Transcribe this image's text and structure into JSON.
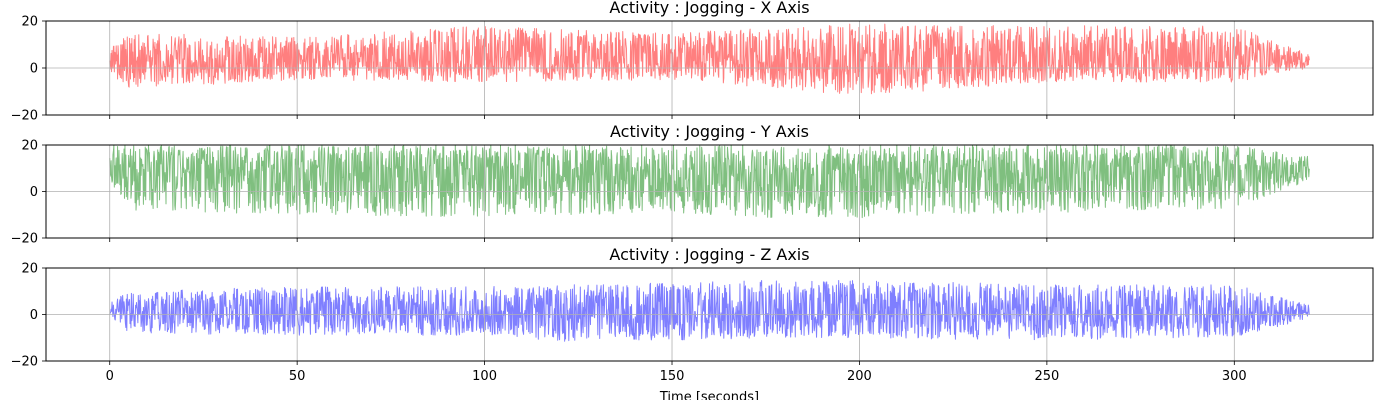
{
  "chart_data": [
    {
      "type": "line",
      "title": "Activity : Jogging - X Axis",
      "color": "#ff0000",
      "alpha": 0.5,
      "xlim": [
        -17,
        337
      ],
      "ylim": [
        -20,
        20
      ],
      "yticks": [
        -20,
        0,
        20
      ],
      "xticks": [
        0,
        50,
        100,
        150,
        200,
        250,
        300
      ],
      "grid": true,
      "show_xticklabels": false,
      "xlabel": "",
      "series": [
        {
          "x_range": [
            0,
            320
          ],
          "baseline": 3,
          "typical_range": [
            -5,
            13
          ],
          "overall_range": [
            -12,
            19
          ],
          "envelope": [
            {
              "x": 0,
              "min": -2,
              "max": 8
            },
            {
              "x": 5,
              "min": -9,
              "max": 15
            },
            {
              "x": 50,
              "min": -5,
              "max": 13
            },
            {
              "x": 100,
              "min": -6,
              "max": 18
            },
            {
              "x": 150,
              "min": -5,
              "max": 15
            },
            {
              "x": 200,
              "min": -12,
              "max": 19
            },
            {
              "x": 250,
              "min": -6,
              "max": 18
            },
            {
              "x": 300,
              "min": -6,
              "max": 18
            },
            {
              "x": 320,
              "min": 0,
              "max": 6
            }
          ]
        }
      ]
    },
    {
      "type": "line",
      "title": "Activity : Jogging - Y Axis",
      "color": "#008000",
      "alpha": 0.5,
      "xlim": [
        -17,
        337
      ],
      "ylim": [
        -20,
        20
      ],
      "yticks": [
        -20,
        0,
        20
      ],
      "xticks": [
        0,
        50,
        100,
        150,
        200,
        250,
        300
      ],
      "grid": true,
      "show_xticklabels": false,
      "xlabel": "",
      "series": [
        {
          "x_range": [
            0,
            320
          ],
          "baseline": 8,
          "typical_range": [
            -6,
            20
          ],
          "overall_range": [
            -12,
            20
          ],
          "envelope": [
            {
              "x": 0,
              "min": 5,
              "max": 20
            },
            {
              "x": 5,
              "min": -8,
              "max": 20
            },
            {
              "x": 50,
              "min": -10,
              "max": 20
            },
            {
              "x": 100,
              "min": -11,
              "max": 20
            },
            {
              "x": 150,
              "min": -9,
              "max": 20
            },
            {
              "x": 185,
              "min": -12,
              "max": 20
            },
            {
              "x": 250,
              "min": -9,
              "max": 20
            },
            {
              "x": 300,
              "min": -8,
              "max": 20
            },
            {
              "x": 320,
              "min": 5,
              "max": 15
            }
          ]
        }
      ]
    },
    {
      "type": "line",
      "title": "Activity : Jogging - Z Axis",
      "color": "#0000ff",
      "alpha": 0.5,
      "xlim": [
        -17,
        337
      ],
      "ylim": [
        -20,
        20
      ],
      "yticks": [
        -20,
        0,
        20
      ],
      "xticks": [
        0,
        50,
        100,
        150,
        200,
        250,
        300
      ],
      "grid": true,
      "show_xticklabels": true,
      "xlabel": "Time [seconds]",
      "series": [
        {
          "x_range": [
            0,
            320
          ],
          "baseline": 1,
          "typical_range": [
            -7,
            10
          ],
          "overall_range": [
            -12,
            15
          ],
          "envelope": [
            {
              "x": 0,
              "min": 0,
              "max": 5
            },
            {
              "x": 5,
              "min": -8,
              "max": 10
            },
            {
              "x": 50,
              "min": -9,
              "max": 12
            },
            {
              "x": 100,
              "min": -9,
              "max": 12
            },
            {
              "x": 125,
              "min": -12,
              "max": 13
            },
            {
              "x": 185,
              "min": -10,
              "max": 15
            },
            {
              "x": 250,
              "min": -11,
              "max": 13
            },
            {
              "x": 300,
              "min": -10,
              "max": 13
            },
            {
              "x": 320,
              "min": -2,
              "max": 4
            }
          ]
        }
      ]
    }
  ]
}
